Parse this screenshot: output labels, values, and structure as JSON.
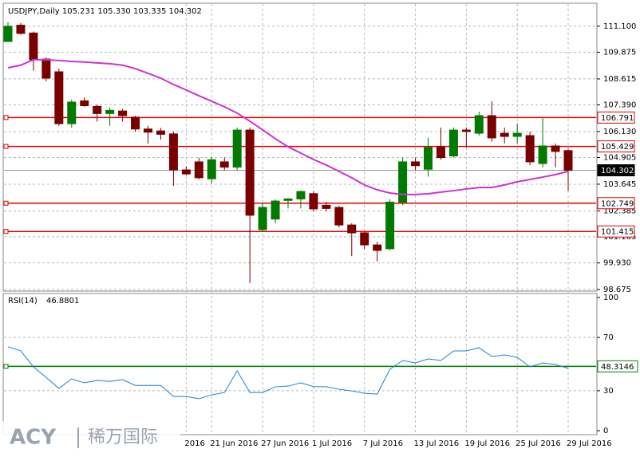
{
  "chart_data": [
    {
      "type": "candlestick",
      "title": "USDJPY,Daily 105.231 105.330 103.335 104.302",
      "categories": [
        null,
        null,
        null,
        null,
        null,
        null,
        null,
        null,
        null,
        null,
        null,
        null,
        null,
        null,
        "2016",
        null,
        "21 Jun 2016",
        null,
        null,
        null,
        "27 Jun 2016",
        null,
        null,
        null,
        "1 Jul 2016",
        null,
        null,
        null,
        "7 Jul 2016",
        null,
        null,
        null,
        "13 Jul 2016",
        null,
        null,
        null,
        "19 Jul 2016",
        null,
        null,
        null,
        "25 Jul 2016",
        null,
        null,
        null,
        "29 Jul 2016"
      ],
      "open": [
        110.38,
        111.15,
        110.78,
        109.55,
        108.95,
        106.5,
        107.58,
        107.32,
        106.98,
        107.1,
        106.81,
        106.25,
        106.16,
        106.02,
        104.32,
        104.7,
        103.9,
        104.7,
        104.45,
        106.2,
        101.5,
        102.0,
        102.88,
        102.95,
        103.2,
        102.65,
        102.55,
        101.72,
        101.35,
        100.78,
        100.6,
        102.8,
        104.7,
        104.35,
        105.4,
        104.98,
        106.2,
        106.05,
        106.88,
        106.05,
        105.9,
        105.94,
        104.62,
        105.45,
        105.231
      ],
      "high": [
        111.3,
        111.25,
        110.85,
        109.63,
        109.1,
        107.64,
        107.75,
        107.4,
        107.26,
        107.2,
        106.88,
        106.4,
        106.3,
        106.13,
        104.5,
        104.9,
        104.95,
        104.9,
        106.32,
        106.32,
        102.74,
        102.93,
        103.0,
        103.35,
        103.31,
        102.8,
        102.62,
        101.8,
        101.42,
        100.93,
        102.93,
        104.9,
        104.9,
        105.84,
        106.32,
        106.32,
        106.32,
        107.07,
        107.56,
        106.32,
        106.51,
        106.13,
        106.75,
        105.57,
        105.33
      ],
      "low": [
        110.38,
        110.7,
        109.0,
        108.5,
        106.4,
        106.32,
        107.3,
        106.6,
        106.4,
        106.6,
        106.13,
        105.57,
        105.75,
        103.57,
        104.06,
        103.87,
        103.68,
        104.3,
        104.3,
        98.98,
        101.42,
        101.8,
        102.5,
        102.5,
        102.37,
        102.37,
        101.61,
        100.25,
        100.6,
        100.0,
        100.52,
        102.65,
        104.3,
        104.0,
        104.8,
        104.9,
        105.38,
        105.94,
        105.65,
        105.57,
        105.57,
        104.55,
        104.44,
        104.44,
        103.335
      ],
      "close": [
        111.1,
        110.76,
        109.52,
        108.65,
        106.5,
        107.52,
        107.35,
        106.98,
        107.13,
        106.88,
        106.25,
        106.1,
        106.0,
        104.32,
        104.13,
        103.95,
        104.8,
        104.45,
        106.2,
        102.18,
        102.55,
        102.85,
        102.95,
        103.3,
        102.48,
        102.5,
        101.72,
        101.35,
        100.78,
        100.52,
        102.8,
        104.7,
        104.52,
        105.38,
        104.9,
        106.2,
        106.13,
        106.88,
        105.83,
        105.9,
        106.05,
        104.7,
        105.45,
        105.19,
        104.302
      ],
      "up_color": "#007a00",
      "down_color": "#7a0000",
      "overlay": {
        "color": "#cc33cc",
        "values": [
          109.14,
          109.26,
          109.52,
          109.52,
          109.48,
          109.44,
          109.41,
          109.37,
          109.33,
          109.26,
          109.1,
          108.88,
          108.65,
          108.35,
          108.09,
          107.82,
          107.56,
          107.3,
          107.0,
          106.62,
          106.21,
          105.79,
          105.41,
          105.11,
          104.81,
          104.55,
          104.25,
          103.95,
          103.61,
          103.38,
          103.23,
          103.16,
          103.16,
          103.19,
          103.27,
          103.34,
          103.42,
          103.49,
          103.49,
          103.61,
          103.76,
          103.87,
          103.98,
          104.1,
          104.25
        ]
      },
      "levels": [
        106.791,
        105.429,
        102.749,
        101.415
      ],
      "level_color": "#e00000",
      "ylim": [
        98.6,
        112.15
      ],
      "yticks": [
        {
          "value": 111.1,
          "label": "111.100"
        },
        109.875,
        108.615,
        {
          "value": 107.39,
          "label": "107.390"
        },
        {
          "value": 106.13,
          "label": "106.130"
        },
        104.905,
        103.645,
        102.385,
        101.165,
        {
          "value": 99.93,
          "label": "99.930"
        },
        98.675
      ],
      "grid": true
    },
    {
      "type": "line",
      "title": "RSI(14)",
      "color": "#1e7fd0",
      "values": [
        62.9,
        60.0,
        47.9,
        40.0,
        31.7,
        38.9,
        35.9,
        37.7,
        37.0,
        38.3,
        34.0,
        34.0,
        34.0,
        25.7,
        25.7,
        24.0,
        26.9,
        28.7,
        44.9,
        28.7,
        28.7,
        32.9,
        33.5,
        35.9,
        33.0,
        33.0,
        31.1,
        29.9,
        28.1,
        27.5,
        46.1,
        52.7,
        50.9,
        53.9,
        52.7,
        59.9,
        59.9,
        62.3,
        55.7,
        56.9,
        55.1,
        47.9,
        50.9,
        49.7,
        46.8801
      ],
      "level": 48.3146,
      "level_color": "#008000",
      "ylim": [
        0,
        100
      ],
      "yticks": [
        100,
        70,
        30,
        0
      ],
      "grid": true
    }
  ],
  "watermark": {
    "brand": "ACY",
    "name": "稀万国际"
  }
}
